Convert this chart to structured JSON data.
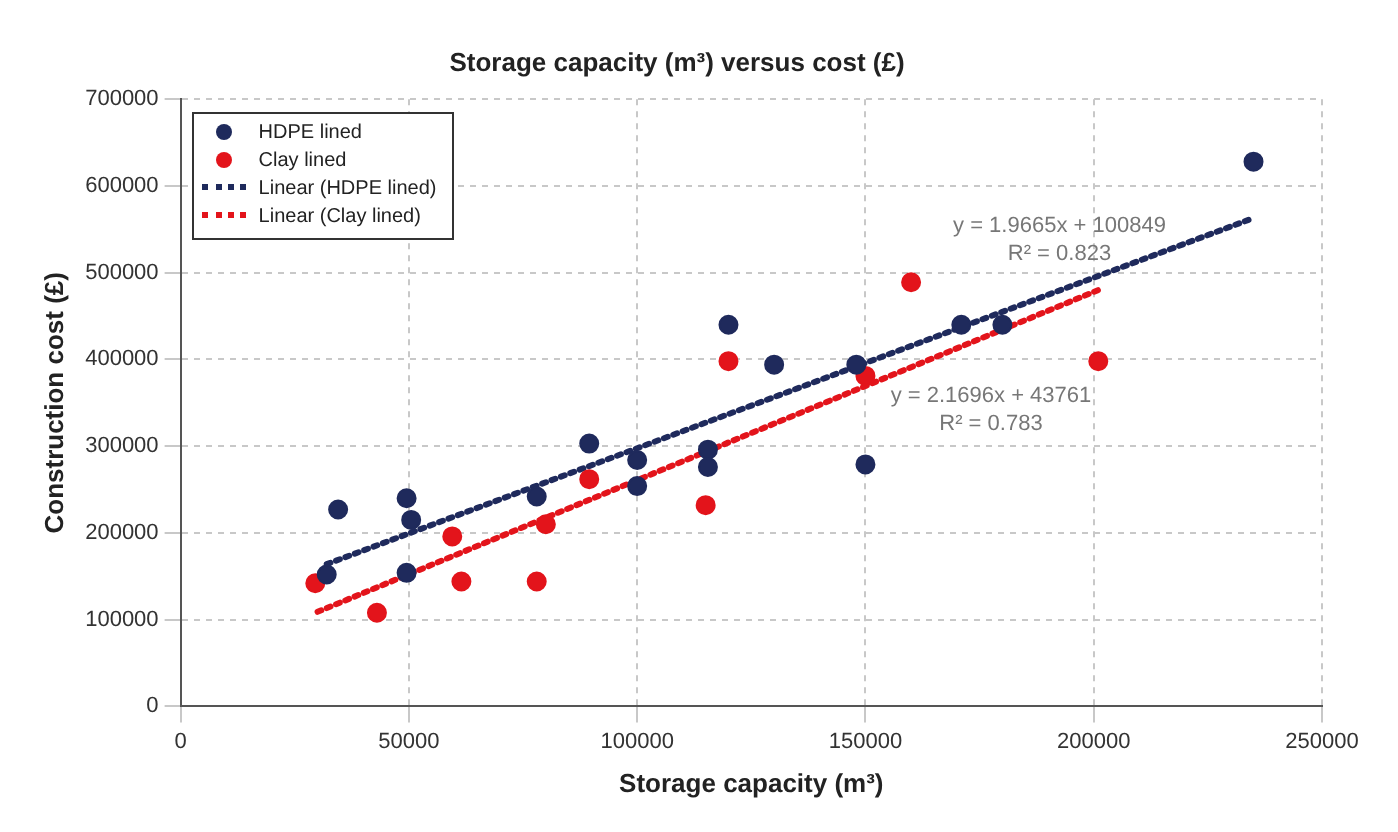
{
  "chart_data": {
    "type": "scatter",
    "title": "Storage capacity (m³) versus cost (£)",
    "xlabel": "Storage capacity (m³)",
    "ylabel": "Construction cost (£)",
    "xlim": [
      0,
      250000
    ],
    "xticks": [
      0,
      50000,
      100000,
      150000,
      200000,
      250000
    ],
    "ylim": [
      0,
      700000
    ],
    "yticks": [
      0,
      100000,
      200000,
      300000,
      400000,
      500000,
      600000,
      700000
    ],
    "grid": true,
    "legend": "top left",
    "marker": "circle",
    "series": [
      {
        "name": "HDPE lined",
        "color": "#1f2a5c",
        "x": [
          32000,
          34500,
          49500,
          50500,
          49500,
          78000,
          89500,
          100000,
          100000,
          115500,
          115500,
          120000,
          130000,
          148000,
          150000,
          171000,
          180000,
          235000
        ],
        "values": [
          152000,
          227000,
          240000,
          215000,
          154000,
          242000,
          303000,
          284000,
          254000,
          296000,
          276000,
          440000,
          394000,
          394000,
          279000,
          440000,
          440000,
          628000
        ]
      },
      {
        "name": "Clay lined",
        "color": "#e3141b",
        "x": [
          29500,
          43000,
          59500,
          61500,
          78000,
          80000,
          89500,
          115000,
          120000,
          150000,
          160000,
          201000
        ],
        "values": [
          142000,
          108000,
          196000,
          144000,
          144000,
          210000,
          262000,
          232000,
          398000,
          381000,
          489000,
          398000
        ]
      },
      {
        "name": "Linear (HDPE lined)",
        "color": "#1f2a5c",
        "type": "line",
        "marker": "none",
        "line_style": "dotted",
        "x": [
          32000,
          235000
        ],
        "values": [
          164000,
          563000
        ]
      },
      {
        "name": "Linear (Clay lined)",
        "color": "#e3141b",
        "type": "line",
        "marker": "none",
        "line_style": "dotted",
        "x": [
          30000,
          201000
        ],
        "values": [
          109000,
          480000
        ]
      }
    ],
    "annotations": [
      "y = 1.9665x + 100849",
      "R² = 0.823",
      "y = 2.1696x + 43761",
      "R² = 0.783"
    ]
  }
}
